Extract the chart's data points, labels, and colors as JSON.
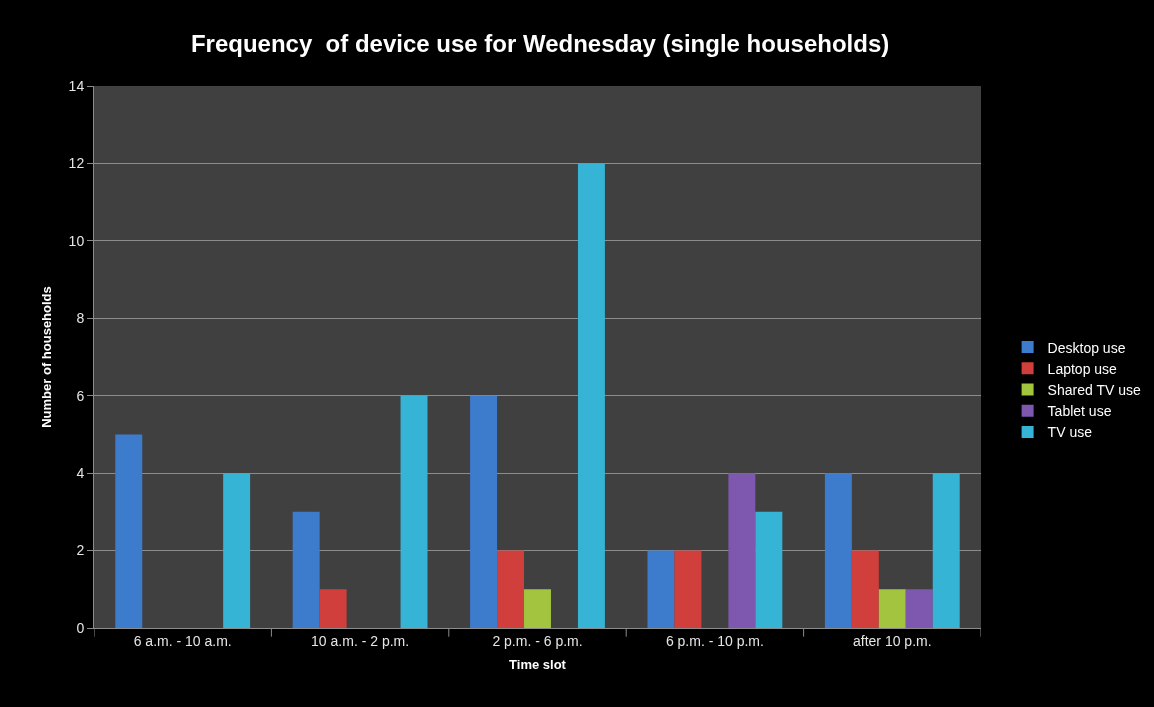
{
  "chart_data": {
    "type": "bar",
    "title": "Frequency  of device use for Wednesday (single households)",
    "xlabel": "Time slot",
    "ylabel": "Number of households",
    "categories": [
      "6 a.m. - 10 a.m.",
      "10 a.m. - 2 p.m.",
      "2 p.m. - 6 p.m.",
      "6 p.m. - 10 p.m.",
      "after 10 p.m."
    ],
    "series": [
      {
        "name": "Desktop use",
        "color": "#3d7ccc",
        "values": [
          5,
          3,
          6,
          2,
          4
        ]
      },
      {
        "name": "Laptop use",
        "color": "#d13f3c",
        "values": [
          0,
          1,
          2,
          2,
          2
        ]
      },
      {
        "name": "Shared TV use",
        "color": "#a2c43e",
        "values": [
          0,
          0,
          1,
          0,
          1
        ]
      },
      {
        "name": "Tablet use",
        "color": "#7e57ae",
        "values": [
          0,
          0,
          0,
          4,
          1
        ]
      },
      {
        "name": "TV use",
        "color": "#35b4d6",
        "values": [
          4,
          6,
          12,
          3,
          4
        ]
      }
    ],
    "ylim": [
      0,
      14
    ],
    "yticks": [
      0,
      2,
      4,
      6,
      8,
      10,
      12,
      14
    ],
    "grid": "y",
    "legend": "right"
  }
}
